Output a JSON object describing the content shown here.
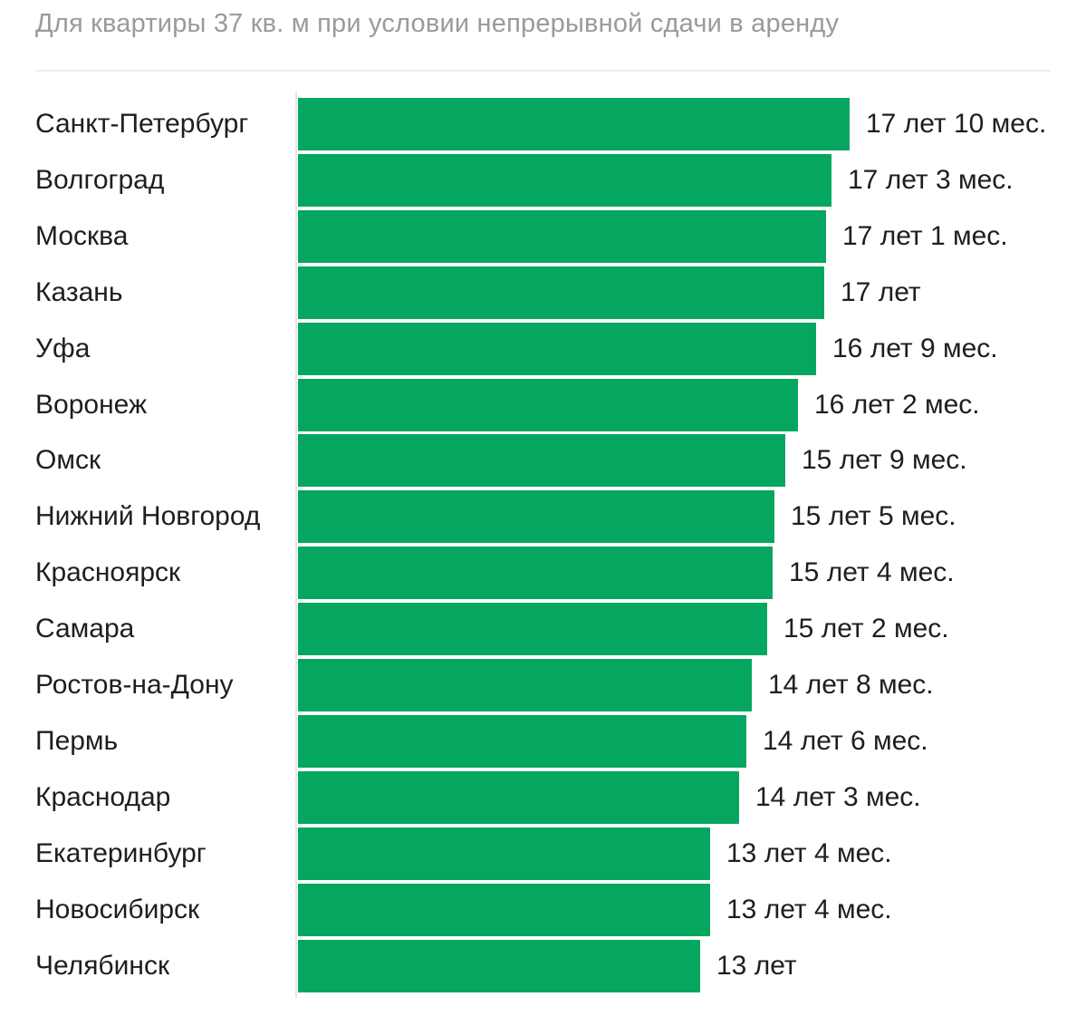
{
  "subtitle": "Для квартиры 37 кв. м при условии непрерывной сдачи в аренду",
  "colors": {
    "bar": "#05a660",
    "text": "#1e1e1e",
    "subtitle": "#9a9a9a"
  },
  "chart_data": {
    "type": "bar",
    "orientation": "horizontal",
    "title": "",
    "subtitle": "Для квартиры 37 кв. м при условии непрерывной сдачи в аренду",
    "xlim": [
      0,
      18
    ],
    "categories": [
      "Санкт-Петербург",
      "Волгоград",
      "Москва",
      "Казань",
      "Уфа",
      "Воронеж",
      "Омск",
      "Нижний Новгород",
      "Красноярск",
      "Самара",
      "Ростов-на-Дону",
      "Пермь",
      "Краснодар",
      "Екатеринбург",
      "Новосибирск",
      "Челябинск"
    ],
    "values_years": [
      17.833,
      17.25,
      17.083,
      17.0,
      16.75,
      16.167,
      15.75,
      15.417,
      15.333,
      15.167,
      14.667,
      14.5,
      14.25,
      13.333,
      13.333,
      13.0
    ],
    "data_labels": [
      "17 лет 10 мес.",
      "17 лет 3 мес.",
      "17 лет 1 мес.",
      "17 лет",
      "16 лет 9 мес.",
      "16 лет 2 мес.",
      "15 лет 9 мес.",
      "15 лет 5 мес.",
      "15 лет 4 мес.",
      "15 лет 2 мес.",
      "14 лет 8 мес.",
      "14 лет 6 мес.",
      "14 лет 3 мес.",
      "13 лет 4 мес.",
      "13 лет 4 мес.",
      "13 лет"
    ]
  }
}
